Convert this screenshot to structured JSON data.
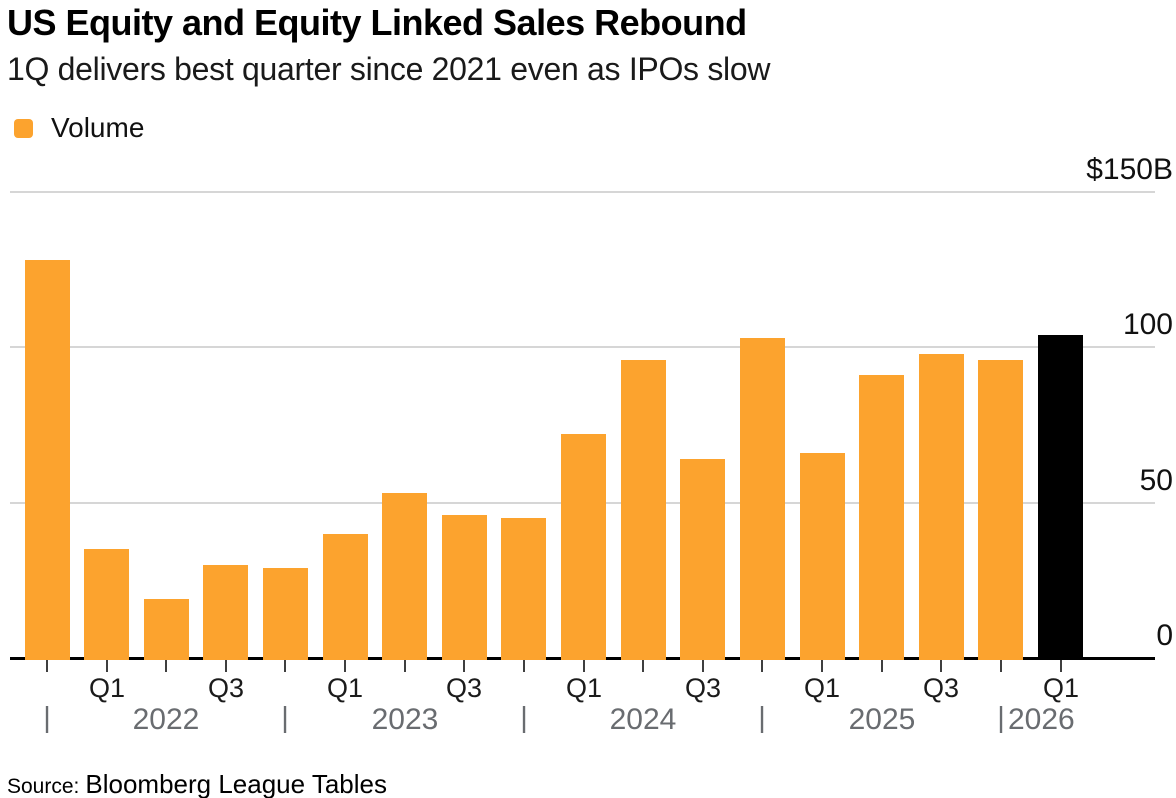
{
  "source": {
    "prefix": "Source:",
    "text": "Bloomberg League Tables"
  },
  "colors": {
    "background": "#FFFFFF",
    "bar_orange": "#FCA32E",
    "bar_highlight": "#000000",
    "gridline": "#D6D6D6",
    "axis_line": "#000000",
    "tick": "#3F3F3F",
    "quarter_label": "#1B1B1B",
    "year_label": "#696C70",
    "y_label": "#111111"
  },
  "chart_data": {
    "type": "bar",
    "title": "US Equity and Equity Linked Sales Rebound",
    "subtitle": "1Q delivers best quarter since 2021 even as IPOs slow",
    "unit": "USD billions",
    "ylim": [
      0,
      150
    ],
    "grid": true,
    "axis_side": "right",
    "yticks": [
      {
        "value": 150,
        "label": "$150B"
      },
      {
        "value": 100,
        "label": "100"
      },
      {
        "value": 50,
        "label": "50"
      },
      {
        "value": 0,
        "label": "0"
      }
    ],
    "legend": {
      "position": "top-left",
      "entries": [
        {
          "label": "Volume",
          "color": "#FCA32E"
        }
      ]
    },
    "bar_color": "#FCA32E",
    "highlight": {
      "index": 17,
      "color": "#000000"
    },
    "categories": [
      "Q4 2021",
      "Q1 2022",
      "Q2 2022",
      "Q3 2022",
      "Q4 2022",
      "Q1 2023",
      "Q2 2023",
      "Q3 2023",
      "Q4 2023",
      "Q1 2024",
      "Q2 2024",
      "Q3 2024",
      "Q4 2024",
      "Q1 2025",
      "Q2 2025",
      "Q3 2025",
      "Q4 2025",
      "Q1 2026"
    ],
    "values": [
      128,
      35,
      19,
      30,
      29,
      40,
      53,
      46,
      45,
      72,
      96,
      64,
      103,
      66,
      91,
      98,
      96,
      104
    ],
    "x_axis": {
      "quarter_labels": [
        {
          "index": 1,
          "label": "Q1"
        },
        {
          "index": 3,
          "label": "Q3"
        },
        {
          "index": 5,
          "label": "Q1"
        },
        {
          "index": 7,
          "label": "Q3"
        },
        {
          "index": 9,
          "label": "Q1"
        },
        {
          "index": 11,
          "label": "Q3"
        },
        {
          "index": 13,
          "label": "Q1"
        },
        {
          "index": 15,
          "label": "Q3"
        },
        {
          "index": 17,
          "label": "Q1"
        }
      ],
      "year_separators": [
        0,
        4,
        8,
        12,
        16
      ],
      "year_labels": [
        {
          "label": "2022",
          "index": 2,
          "align": "center"
        },
        {
          "label": "2023",
          "index": 6,
          "align": "center"
        },
        {
          "label": "2024",
          "index": 10,
          "align": "center"
        },
        {
          "label": "2025",
          "index": 14,
          "align": "center"
        },
        {
          "label": "2026",
          "index": 16,
          "align": "left"
        }
      ]
    }
  }
}
